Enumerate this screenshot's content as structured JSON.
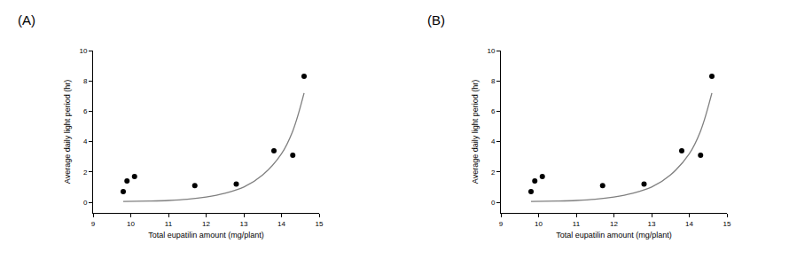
{
  "chart_data": [
    {
      "type": "scatter",
      "title": "(A)",
      "x_label": "Total eupatilin amount (mg/plant)",
      "y_label": "Average daily light period (hr)",
      "xlim": [
        9,
        15
      ],
      "xticks": [
        9,
        10,
        11,
        12,
        13,
        14,
        15
      ],
      "ylim": [
        -0.7,
        10
      ],
      "yticks": [
        0,
        2,
        4,
        6,
        8,
        10
      ],
      "grid": false,
      "series": [
        {
          "type": "scatter",
          "color": "#000000",
          "marker": "circle",
          "x": [
            9.8,
            9.9,
            10.1,
            11.7,
            12.8,
            13.8,
            14.3,
            14.6
          ],
          "values": [
            0.7,
            1.4,
            1.7,
            1.1,
            1.2,
            3.4,
            3.1,
            8.3
          ]
        },
        {
          "type": "line",
          "color": "#7f7f7f",
          "line_style": "solid",
          "x": [
            9.8,
            10.5,
            11,
            11.5,
            12,
            12.5,
            13,
            13.5,
            14,
            14.3,
            14.6
          ],
          "values": [
            0.05,
            0.08,
            0.12,
            0.2,
            0.35,
            0.6,
            1.0,
            1.8,
            3.2,
            4.7,
            7.2
          ]
        }
      ]
    },
    {
      "type": "scatter",
      "title": "(B)",
      "x_label": "Total eupatilin amount (mg/plant)",
      "y_label": "Average daily light period (hr)",
      "xlim": [
        9,
        15
      ],
      "xticks": [
        9,
        10,
        11,
        12,
        13,
        14,
        15
      ],
      "ylim": [
        -0.7,
        10
      ],
      "yticks": [
        0,
        2,
        4,
        6,
        8,
        10
      ],
      "grid": false,
      "series": [
        {
          "type": "scatter",
          "color": "#000000",
          "marker": "circle",
          "x": [
            9.8,
            9.9,
            10.1,
            11.7,
            12.8,
            13.8,
            14.3,
            14.6
          ],
          "values": [
            0.7,
            1.4,
            1.7,
            1.1,
            1.2,
            3.4,
            3.1,
            8.3
          ]
        },
        {
          "type": "line",
          "color": "#7f7f7f",
          "line_style": "solid",
          "x": [
            9.8,
            10.5,
            11,
            11.5,
            12,
            12.5,
            13,
            13.5,
            14,
            14.3,
            14.6
          ],
          "values": [
            0.05,
            0.08,
            0.12,
            0.2,
            0.35,
            0.6,
            1.0,
            1.8,
            3.2,
            4.7,
            7.2
          ]
        }
      ]
    }
  ]
}
